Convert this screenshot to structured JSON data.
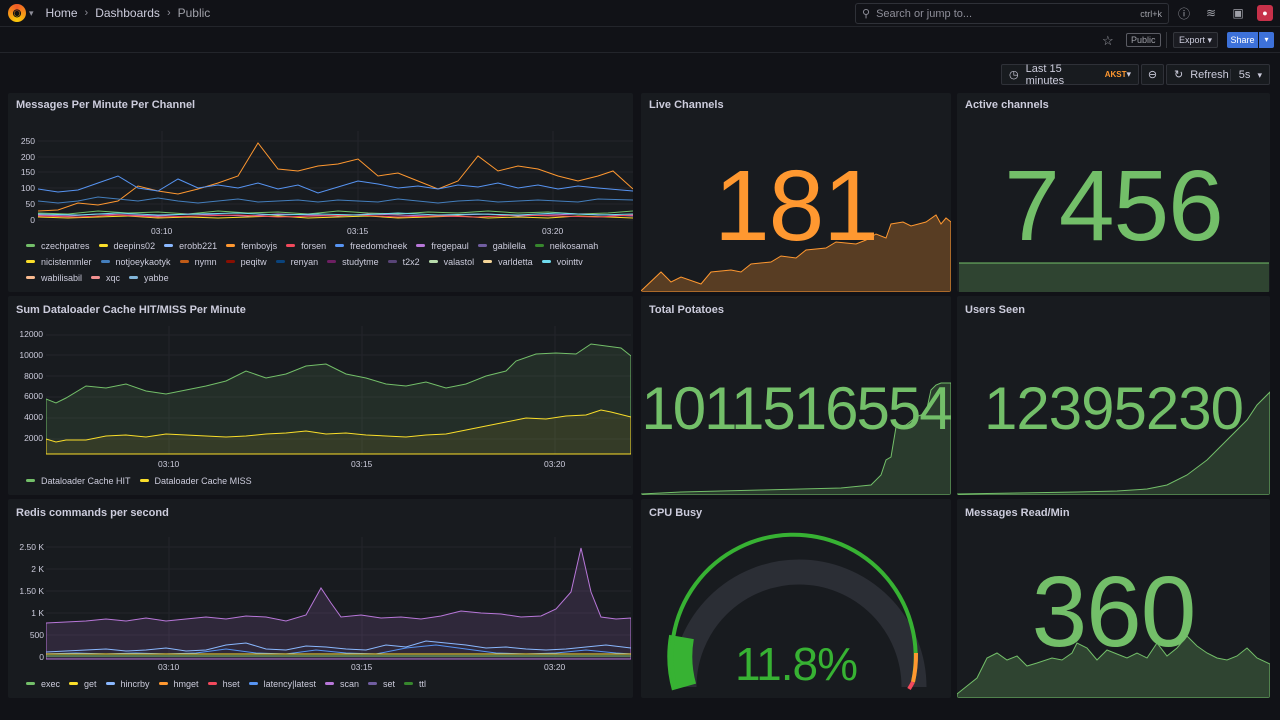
{
  "nav": {
    "breadcrumbs": [
      "Home",
      "Dashboards",
      "Public"
    ],
    "search_placeholder": "Search or jump to...",
    "search_shortcut": "ctrl+k",
    "public_tag": "Public",
    "export_label": "Export",
    "share_label": "Share"
  },
  "toolbar": {
    "time_range": "Last 15 minutes",
    "timezone": "AKST",
    "refresh_label": "Refresh",
    "refresh_interval": "5s"
  },
  "colors": {
    "green": "#73bf69",
    "orange": "#ff9830",
    "yellow": "#fade2a",
    "blue": "#5794f2",
    "purple": "#b877d9"
  },
  "panels": {
    "messages_per_minute": {
      "title": "Messages Per Minute Per Channel",
      "yticks": [
        "250",
        "200",
        "150",
        "100",
        "50",
        "0"
      ],
      "xticks": [
        "03:10",
        "03:15",
        "03:20"
      ],
      "legend": [
        {
          "name": "czechpatres",
          "color": "#73bf69"
        },
        {
          "name": "deepins02",
          "color": "#fade2a"
        },
        {
          "name": "erobb221",
          "color": "#8ab8ff"
        },
        {
          "name": "femboyjs",
          "color": "#ff9830"
        },
        {
          "name": "forsen",
          "color": "#f2495c"
        },
        {
          "name": "freedomcheek",
          "color": "#5794f2"
        },
        {
          "name": "fregepaul",
          "color": "#b877d9"
        },
        {
          "name": "gabilella",
          "color": "#705da0"
        },
        {
          "name": "neikosamah",
          "color": "#37872d"
        },
        {
          "name": "nicistemmler",
          "color": "#fade2a"
        },
        {
          "name": "notjoeykaotyk",
          "color": "#447ebc"
        },
        {
          "name": "nymn",
          "color": "#c15c17"
        },
        {
          "name": "peqitw",
          "color": "#890f02"
        },
        {
          "name": "renyan",
          "color": "#0a437c"
        },
        {
          "name": "studytme",
          "color": "#6d1f62"
        },
        {
          "name": "t2x2",
          "color": "#584477"
        },
        {
          "name": "valastol",
          "color": "#b7dbab"
        },
        {
          "name": "varldetta",
          "color": "#f4d598"
        },
        {
          "name": "vointtv",
          "color": "#70dbed"
        },
        {
          "name": "wabilisabil",
          "color": "#f9ba8f"
        },
        {
          "name": "xqc",
          "color": "#f29191"
        },
        {
          "name": "yabbe",
          "color": "#82b5d8"
        }
      ]
    },
    "live_channels": {
      "title": "Live Channels",
      "value": "181"
    },
    "active_channels": {
      "title": "Active channels",
      "value": "7456"
    },
    "dataloader": {
      "title": "Sum Dataloader Cache HIT/MISS Per Minute",
      "yticks": [
        "12000",
        "10000",
        "8000",
        "6000",
        "4000",
        "2000"
      ],
      "xticks": [
        "03:10",
        "03:15",
        "03:20"
      ],
      "legend": [
        {
          "name": "Dataloader Cache HIT",
          "color": "#73bf69"
        },
        {
          "name": "Dataloader Cache MISS",
          "color": "#fade2a"
        }
      ]
    },
    "total_potatoes": {
      "title": "Total Potatoes",
      "value": "1011516554"
    },
    "users_seen": {
      "title": "Users Seen",
      "value": "12395230"
    },
    "redis": {
      "title": "Redis commands per second",
      "yticks": [
        "2.50 K",
        "2 K",
        "1.50 K",
        "1 K",
        "500",
        "0"
      ],
      "xticks": [
        "03:10",
        "03:15",
        "03:20"
      ],
      "legend": [
        {
          "name": "exec",
          "color": "#73bf69"
        },
        {
          "name": "get",
          "color": "#fade2a"
        },
        {
          "name": "hincrby",
          "color": "#8ab8ff"
        },
        {
          "name": "hmget",
          "color": "#ff9830"
        },
        {
          "name": "hset",
          "color": "#f2495c"
        },
        {
          "name": "latency|latest",
          "color": "#5794f2"
        },
        {
          "name": "scan",
          "color": "#b877d9"
        },
        {
          "name": "set",
          "color": "#705da0"
        },
        {
          "name": "ttl",
          "color": "#37872d"
        }
      ]
    },
    "cpu_busy": {
      "title": "CPU Busy",
      "value": "11.8%",
      "gauge_fraction": 0.118
    },
    "messages_read": {
      "title": "Messages Read/Min",
      "value": "360"
    }
  }
}
